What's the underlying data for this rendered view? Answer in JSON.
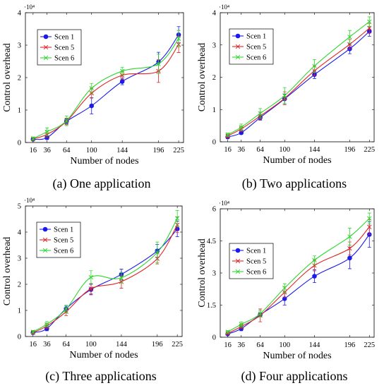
{
  "figure": {
    "x_values": [
      16,
      36,
      64,
      100,
      144,
      196,
      225
    ]
  },
  "colors": {
    "Scen 1": "#1a1aee",
    "Scen 5": "#e02424",
    "Scen 6": "#2ed62e"
  },
  "chart_data": [
    {
      "type": "line",
      "caption": "(a) One application",
      "xlabel": "Number of nodes",
      "ylabel": "Control overhead",
      "scale_label": "·10⁴",
      "x": [
        16,
        36,
        64,
        100,
        144,
        196,
        225
      ],
      "xticks": [
        "16",
        "36",
        "64",
        "100",
        "144",
        "196",
        "225"
      ],
      "ylim": [
        0,
        4
      ],
      "yticks": [
        0,
        1,
        2,
        3,
        4
      ],
      "yticklabels": [
        "0",
        "1",
        "2",
        "3",
        "4"
      ],
      "legend_position": "top-left",
      "series": [
        {
          "name": "Scen 1",
          "marker": "circle",
          "values": [
            0.1,
            0.15,
            0.65,
            1.13,
            1.88,
            2.48,
            3.32
          ],
          "errors": [
            0.05,
            0.06,
            0.08,
            0.25,
            0.1,
            0.3,
            0.25
          ]
        },
        {
          "name": "Scen 5",
          "marker": "x",
          "values": [
            0.11,
            0.25,
            0.65,
            1.52,
            2.07,
            2.2,
            3.02
          ],
          "errors": [
            0.05,
            0.1,
            0.1,
            0.15,
            0.12,
            0.35,
            0.25
          ]
        },
        {
          "name": "Scen 6",
          "marker": "x",
          "values": [
            0.12,
            0.33,
            0.67,
            1.67,
            2.2,
            2.42,
            3.2
          ],
          "errors": [
            0.05,
            0.12,
            0.15,
            0.15,
            0.12,
            0.3,
            0.25
          ]
        }
      ]
    },
    {
      "type": "line",
      "caption": "(b) Two applications",
      "xlabel": "Number of nodes",
      "ylabel": "Control overhead",
      "scale_label": "·10⁴",
      "x": [
        16,
        36,
        64,
        100,
        144,
        196,
        225
      ],
      "xticks": [
        "16",
        "36",
        "64",
        "100",
        "144",
        "196",
        "225"
      ],
      "ylim": [
        0,
        4
      ],
      "yticks": [
        0,
        1,
        2,
        3,
        4
      ],
      "yticklabels": [
        "0",
        "1",
        "2",
        "3",
        "4"
      ],
      "legend_position": "top-left",
      "series": [
        {
          "name": "Scen 1",
          "marker": "circle",
          "values": [
            0.15,
            0.28,
            0.75,
            1.33,
            2.08,
            2.88,
            3.42
          ],
          "errors": [
            0.05,
            0.05,
            0.08,
            0.15,
            0.12,
            0.15,
            0.15
          ]
        },
        {
          "name": "Scen 5",
          "marker": "x",
          "values": [
            0.18,
            0.4,
            0.8,
            1.35,
            2.2,
            3.02,
            3.52
          ],
          "errors": [
            0.05,
            0.08,
            0.12,
            0.2,
            0.15,
            0.15,
            0.15
          ]
        },
        {
          "name": "Scen 6",
          "marker": "x",
          "values": [
            0.22,
            0.45,
            0.88,
            1.43,
            2.35,
            3.25,
            3.72
          ],
          "errors": [
            0.05,
            0.1,
            0.15,
            0.25,
            0.2,
            0.2,
            0.15
          ]
        }
      ]
    },
    {
      "type": "line",
      "caption": "(c) Three applications",
      "xlabel": "Number of nodes",
      "ylabel": "Control overhead",
      "scale_label": "·10⁴",
      "x": [
        16,
        36,
        64,
        100,
        144,
        196,
        225
      ],
      "xticks": [
        "16",
        "36",
        "64",
        "100",
        "144",
        "196",
        "225"
      ],
      "ylim": [
        0,
        5
      ],
      "yticks": [
        0,
        1,
        2,
        3,
        4,
        5
      ],
      "yticklabels": [
        "0",
        "1",
        "2",
        "3",
        "4",
        "5"
      ],
      "legend_position": "top-left",
      "series": [
        {
          "name": "Scen 1",
          "marker": "circle",
          "values": [
            0.15,
            0.3,
            1.07,
            1.8,
            2.38,
            3.28,
            4.12
          ],
          "errors": [
            0.05,
            0.08,
            0.12,
            0.2,
            0.2,
            0.25,
            0.3
          ]
        },
        {
          "name": "Scen 5",
          "marker": "x",
          "values": [
            0.15,
            0.4,
            0.95,
            1.83,
            2.1,
            2.98,
            4.28
          ],
          "errors": [
            0.05,
            0.1,
            0.15,
            0.2,
            0.25,
            0.2,
            0.3
          ]
        },
        {
          "name": "Scen 6",
          "marker": "x",
          "values": [
            0.18,
            0.47,
            1.05,
            2.27,
            2.25,
            3.22,
            4.53
          ],
          "errors": [
            0.05,
            0.1,
            0.15,
            0.25,
            0.2,
            0.4,
            0.3
          ]
        }
      ]
    },
    {
      "type": "line",
      "caption": "(d) Four applications",
      "xlabel": "Number of nodes",
      "ylabel": "Control overhead",
      "scale_label": "·10⁴",
      "x": [
        16,
        36,
        64,
        100,
        144,
        196,
        225
      ],
      "xticks": [
        "16",
        "36",
        "64",
        "100",
        "144",
        "196",
        "225"
      ],
      "ylim": [
        0,
        6
      ],
      "yticks": [
        0,
        1.5,
        3,
        4.5,
        6
      ],
      "yticklabels": [
        "0",
        "1.5",
        "3",
        "4.5",
        "6"
      ],
      "legend_position": "top-left",
      "series": [
        {
          "name": "Scen 1",
          "marker": "circle",
          "values": [
            0.15,
            0.4,
            1.05,
            1.8,
            2.85,
            3.7,
            4.8
          ],
          "errors": [
            0.05,
            0.1,
            0.1,
            0.3,
            0.3,
            0.5,
            0.6
          ]
        },
        {
          "name": "Scen 5",
          "marker": "x",
          "values": [
            0.18,
            0.5,
            1.02,
            2.1,
            3.35,
            4.15,
            5.15
          ],
          "errors": [
            0.05,
            0.1,
            0.3,
            0.25,
            0.25,
            0.3,
            0.35
          ]
        },
        {
          "name": "Scen 6",
          "marker": "x",
          "values": [
            0.25,
            0.6,
            1.1,
            2.3,
            3.6,
            4.7,
            5.55
          ],
          "errors": [
            0.06,
            0.12,
            0.15,
            0.2,
            0.2,
            0.4,
            0.25
          ]
        }
      ]
    }
  ]
}
